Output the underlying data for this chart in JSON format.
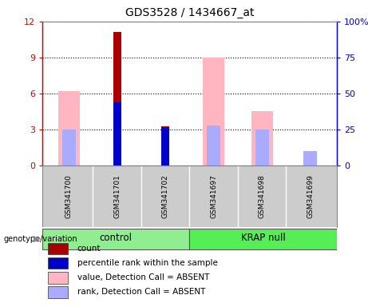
{
  "title": "GDS3528 / 1434667_at",
  "samples": [
    "GSM341700",
    "GSM341701",
    "GSM341702",
    "GSM341697",
    "GSM341698",
    "GSM341699"
  ],
  "ylim_left": [
    0,
    12
  ],
  "ylim_right": [
    0,
    100
  ],
  "yticks_left": [
    0,
    3,
    6,
    9,
    12
  ],
  "yticks_right": [
    0,
    25,
    50,
    75,
    100
  ],
  "yticklabels_left": [
    "0",
    "3",
    "6",
    "9",
    "12"
  ],
  "yticklabels_right": [
    "0",
    "25",
    "50",
    "75",
    "100%"
  ],
  "count_bars": {
    "values": [
      0,
      11.1,
      3.3,
      0,
      0,
      0
    ],
    "color": "#AA0000"
  },
  "percentile_bars": {
    "values": [
      0,
      44,
      27,
      0,
      0,
      0
    ],
    "color": "#0000CC"
  },
  "absent_value_bars": {
    "values": [
      52,
      0,
      0,
      75,
      38,
      0
    ],
    "color": "#FFB6C1"
  },
  "absent_rank_bars": {
    "values": [
      25,
      0,
      0,
      28,
      25,
      10
    ],
    "color": "#AAAAFF"
  },
  "group_labels": [
    "control",
    "KRAP null"
  ],
  "group_colors": [
    "#90EE90",
    "#55EE55"
  ],
  "legend": [
    {
      "label": "count",
      "color": "#AA0000"
    },
    {
      "label": "percentile rank within the sample",
      "color": "#0000CC"
    },
    {
      "label": "value, Detection Call = ABSENT",
      "color": "#FFB6C1"
    },
    {
      "label": "rank, Detection Call = ABSENT",
      "color": "#AAAAFF"
    }
  ],
  "axis_color_left": "#CC0000",
  "axis_color_right": "#0000CC",
  "sample_label_bg": "#CCCCCC",
  "plot_bg": "#FFFFFF"
}
